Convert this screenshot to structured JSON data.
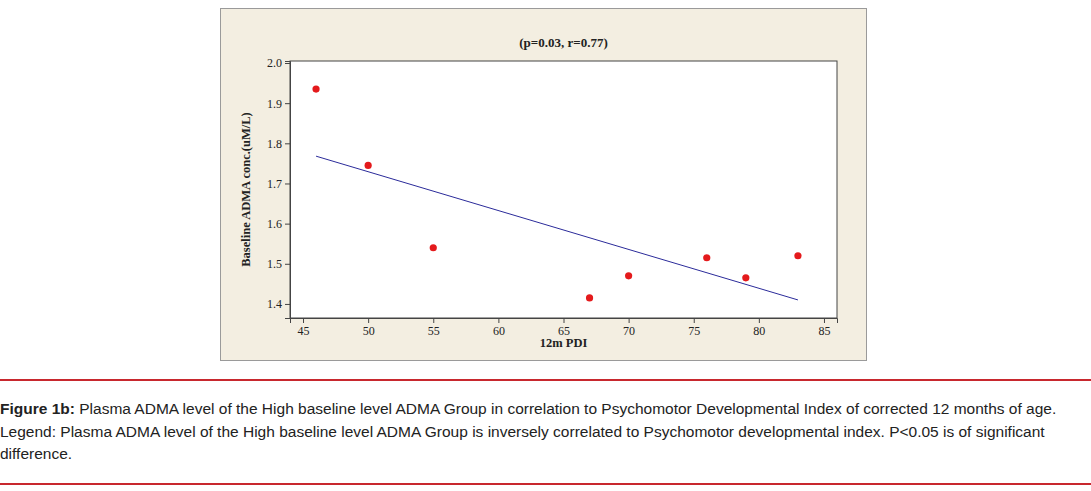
{
  "chart_data": {
    "type": "scatter",
    "title": "(p=0.03, r=0.77)",
    "x_label": "12m PDI",
    "y_label": "Baseline ADMA conc.(uM/L)",
    "x": [
      46,
      50,
      55,
      67,
      70,
      76,
      79,
      83
    ],
    "values": [
      1.935,
      1.745,
      1.54,
      1.415,
      1.47,
      1.515,
      1.465,
      1.52
    ],
    "color": "#e41a1c",
    "marker": "circle",
    "fit": {
      "x": [
        46,
        83
      ],
      "values": [
        1.768,
        1.41
      ],
      "color": "#2b2b9a"
    },
    "xlim": [
      44,
      86
    ],
    "xticks": [
      45,
      50,
      55,
      60,
      65,
      70,
      75,
      80,
      85
    ],
    "ylim": [
      1.365,
      2.005
    ],
    "yticks": [
      1.4,
      1.5,
      1.6,
      1.7,
      1.8,
      1.9,
      {
        "value": 2,
        "label": "2.0"
      }
    ],
    "grid": false,
    "caption_label": "Figure 1b:",
    "caption": "Plasma ADMA level of the High baseline level ADMA Group in correlation to Psychomotor Developmental Index of corrected 12 months of age.",
    "note": "Legend: Plasma ADMA level of the High baseline level ADMA Group is inversely correlated to Psychomotor developmental index. P<0.05 is of significant difference."
  }
}
